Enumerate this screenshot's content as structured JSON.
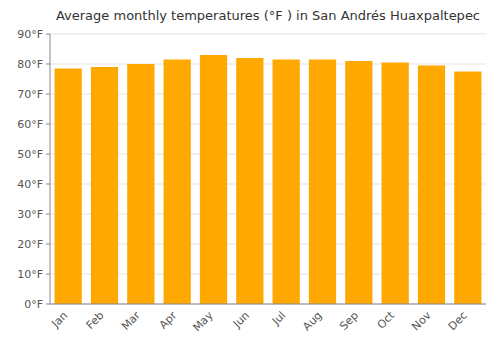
{
  "chart_data": {
    "type": "bar",
    "title": "Average monthly temperatures (°F ) in San Andrés Huaxpaltepec",
    "categories": [
      "Jan",
      "Feb",
      "Mar",
      "Apr",
      "May",
      "Jun",
      "Jul",
      "Aug",
      "Sep",
      "Oct",
      "Nov",
      "Dec"
    ],
    "values": [
      78.5,
      79.0,
      80.0,
      81.5,
      83.0,
      82.0,
      81.5,
      81.5,
      81.0,
      80.5,
      79.5,
      77.5
    ],
    "color": "#FFA800",
    "ylim": [
      0,
      90
    ],
    "yticks": [
      {
        "value": 0,
        "label": "0°F"
      },
      {
        "value": 10,
        "label": "10°F"
      },
      {
        "value": 20,
        "label": "20°F"
      },
      {
        "value": 30,
        "label": "30°F"
      },
      {
        "value": 40,
        "label": "40°F"
      },
      {
        "value": 50,
        "label": "50°F"
      },
      {
        "value": 60,
        "label": "60°F"
      },
      {
        "value": 70,
        "label": "70°F"
      },
      {
        "value": 80,
        "label": "80°F"
      },
      {
        "value": 90,
        "label": "90°F"
      }
    ],
    "grid": true
  }
}
